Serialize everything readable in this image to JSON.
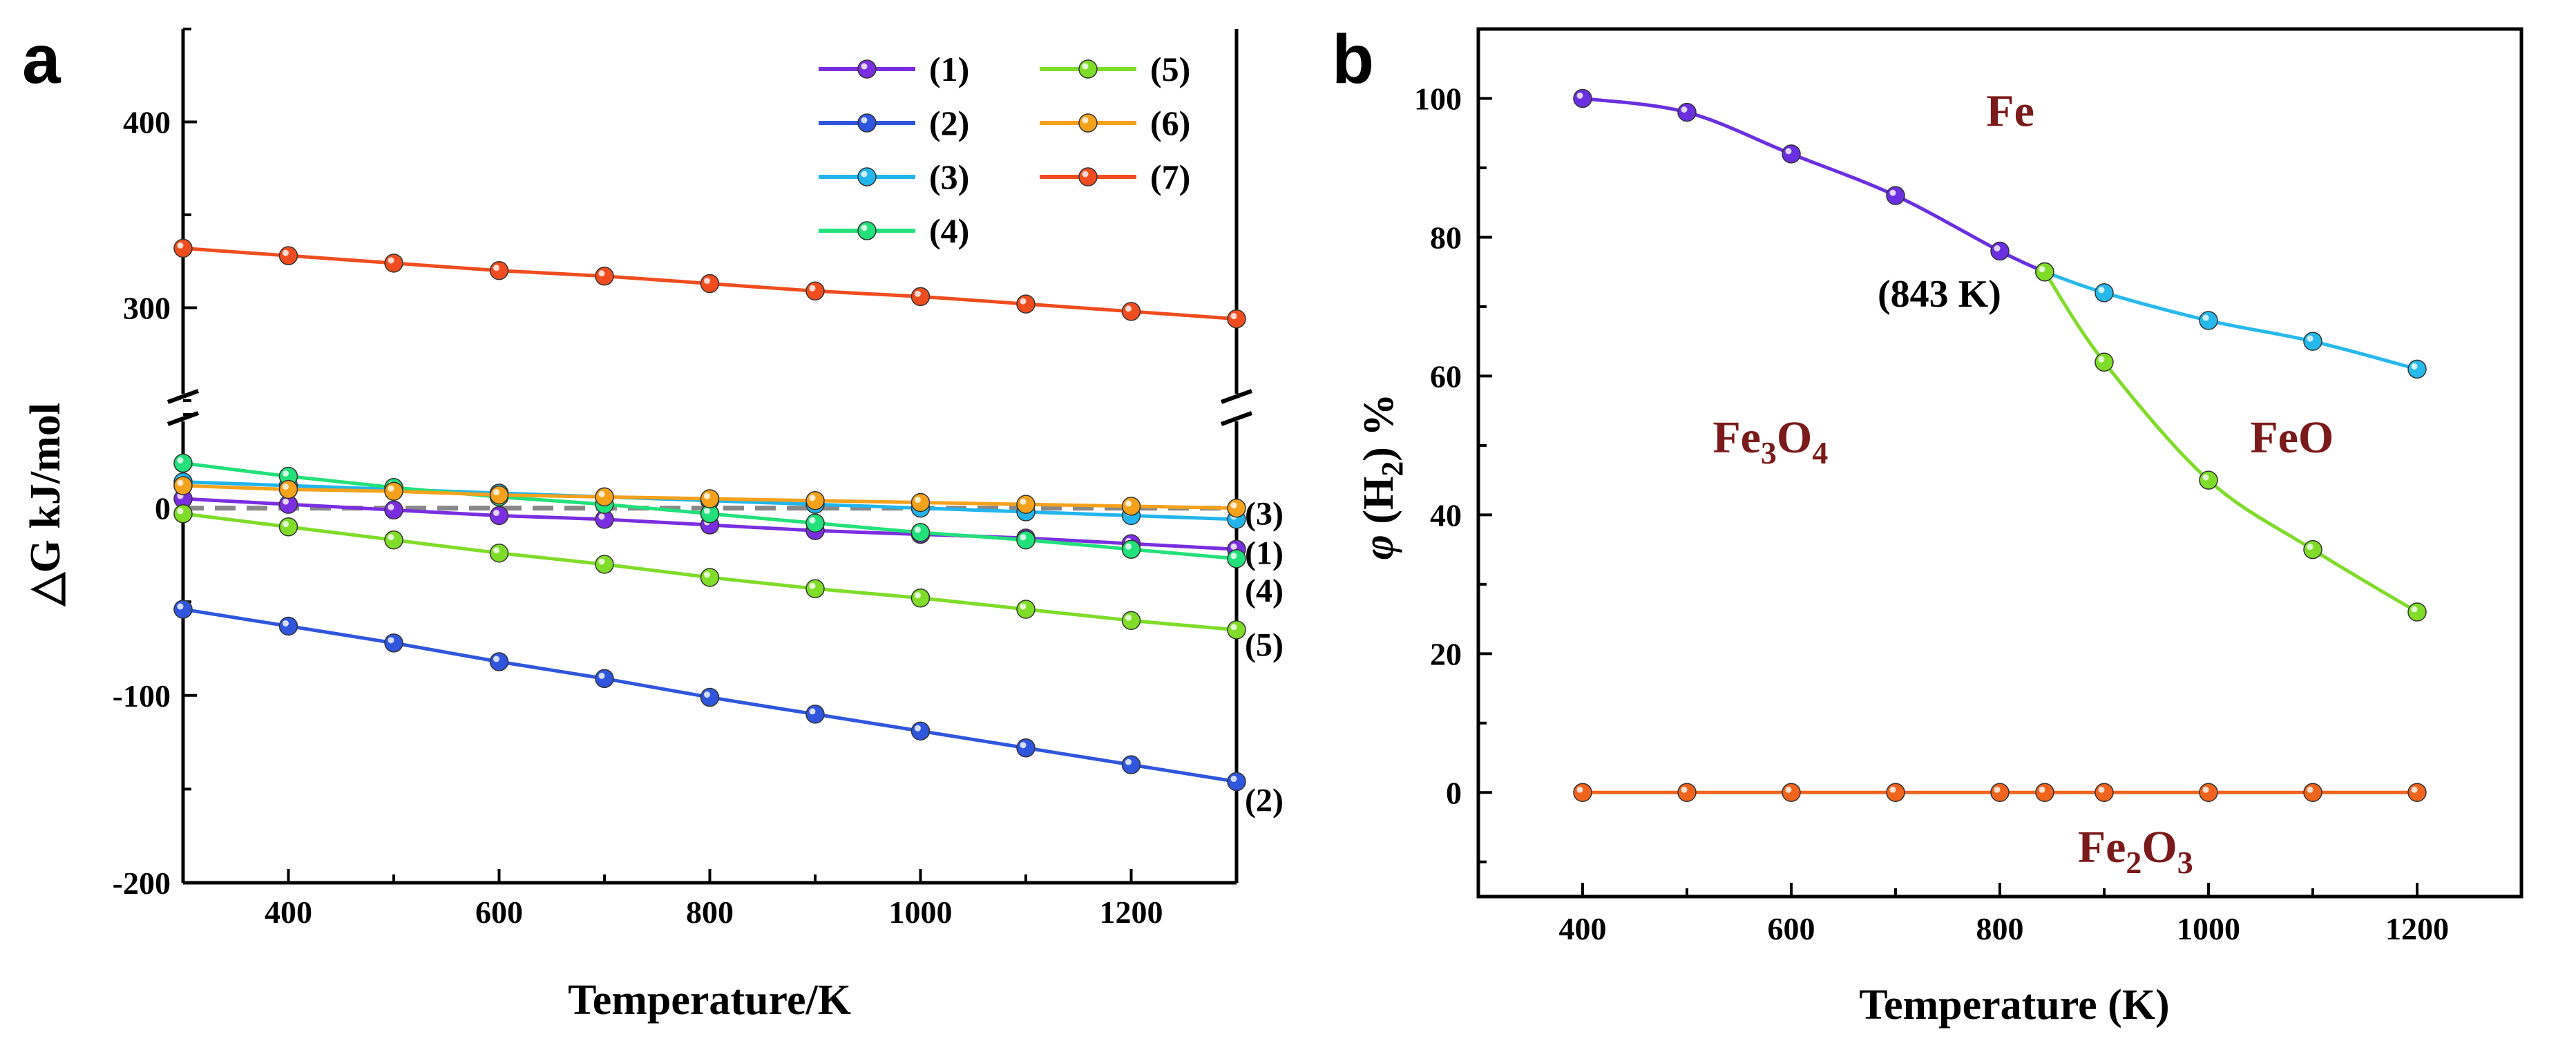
{
  "chart_data": [
    {
      "panel": "a",
      "type": "line",
      "title": "",
      "xlabel": "Temperature/K",
      "ylabel": "△G kJ/mol",
      "xlim": [
        300,
        1300
      ],
      "ylim_lower": [
        -200,
        50
      ],
      "ylim_upper": [
        250,
        450
      ],
      "axis_break": "y between 50 and 250",
      "xticks": [
        400,
        600,
        800,
        1000,
        1200
      ],
      "yticks": [
        -200,
        -100,
        0,
        300,
        400
      ],
      "grid": false,
      "legend_position": "top-right",
      "reference_line": {
        "y": 0,
        "style": "dashed",
        "color": "#888888"
      },
      "x": [
        300,
        400,
        500,
        600,
        700,
        800,
        900,
        1000,
        1100,
        1200,
        1300
      ],
      "series": [
        {
          "name": "(1)",
          "color": "#7b2ee0",
          "values": [
            5,
            2,
            -1,
            -4,
            -6,
            -9,
            -12,
            -14,
            -16,
            -19,
            -22
          ]
        },
        {
          "name": "(2)",
          "color": "#2f56dd",
          "values": [
            -54,
            -63,
            -72,
            -82,
            -91,
            -101,
            -110,
            -119,
            -128,
            -137,
            -146
          ]
        },
        {
          "name": "(3)",
          "color": "#22b5ec",
          "values": [
            14,
            12,
            10,
            8,
            6,
            4,
            2,
            0,
            -2,
            -4,
            -6
          ]
        },
        {
          "name": "(4)",
          "color": "#22e07a",
          "values": [
            24,
            17,
            11,
            6,
            2,
            -3,
            -8,
            -13,
            -17,
            -22,
            -27
          ]
        },
        {
          "name": "(5)",
          "color": "#7fdc28",
          "values": [
            -3,
            -10,
            -17,
            -24,
            -30,
            -37,
            -43,
            -48,
            -54,
            -60,
            -65
          ]
        },
        {
          "name": "(6)",
          "color": "#f4a21c",
          "values": [
            12,
            10,
            9,
            7,
            6,
            5,
            4,
            3,
            2,
            1,
            0
          ]
        },
        {
          "name": "(7)",
          "color": "#ef4d1f",
          "values": [
            332,
            328,
            324,
            320,
            317,
            313,
            309,
            306,
            302,
            298,
            294
          ]
        }
      ],
      "end_labels": [
        {
          "text": "(3)",
          "y": -3
        },
        {
          "text": "(1)",
          "y": -24
        },
        {
          "text": "(4)",
          "y": -44
        },
        {
          "text": "(5)",
          "y": -73
        },
        {
          "text": "(2)",
          "y": -156
        }
      ]
    },
    {
      "panel": "b",
      "type": "line",
      "title": "",
      "xlabel": "Temperature (K)",
      "ylabel": "φ (H₂) %",
      "xlim": [
        300,
        1300
      ],
      "ylim": [
        -15,
        110
      ],
      "xticks": [
        400,
        600,
        800,
        1000,
        1200
      ],
      "yticks": [
        0,
        20,
        40,
        60,
        80,
        100
      ],
      "grid": false,
      "series": [
        {
          "color": "#6a2fe0",
          "x": [
            400,
            500,
            600,
            700,
            800,
            843
          ],
          "values": [
            100,
            98,
            92,
            86,
            78,
            75
          ]
        },
        {
          "color": "#27b9ec",
          "x": [
            843,
            900,
            1000,
            1100,
            1200
          ],
          "values": [
            75,
            72,
            68,
            65,
            61
          ]
        },
        {
          "color": "#7fdc28",
          "x": [
            843,
            900,
            1000,
            1100,
            1200
          ],
          "values": [
            75,
            62,
            45,
            35,
            26
          ]
        },
        {
          "color": "#f0641e",
          "x": [
            400,
            500,
            600,
            700,
            800,
            843,
            900,
            1000,
            1100,
            1200
          ],
          "values": [
            0,
            0,
            0,
            0,
            0,
            0,
            0,
            0,
            0,
            0
          ]
        }
      ],
      "annotations": [
        {
          "text": "(843 K)",
          "x": 742,
          "y": 70
        }
      ],
      "regions": [
        {
          "base": "Fe",
          "sub": "",
          "tail": "",
          "x": 810,
          "y": 96
        },
        {
          "base": "Fe",
          "sub": "3",
          "tail": "O",
          "sub2": "4",
          "x": 580,
          "y": 49
        },
        {
          "base": "FeO",
          "sub": "",
          "tail": "",
          "x": 1080,
          "y": 49
        },
        {
          "base": "Fe",
          "sub": "2",
          "tail": "O",
          "sub2": "3",
          "x": 930,
          "y": -10
        }
      ]
    }
  ],
  "labels": {
    "panel_a": "a",
    "panel_b": "b",
    "b_ylabel_phi": "φ",
    "b_ylabel_rest": " (H",
    "b_ylabel_sub": "2",
    "b_ylabel_end": ") %"
  }
}
